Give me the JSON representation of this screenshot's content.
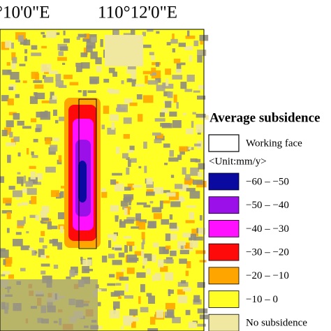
{
  "map_labels": {
    "lon_left": "°10'0\"E",
    "lon_right": "110°12'0\"E"
  },
  "legend": {
    "title": "Average subsidence",
    "working_face": "Working face",
    "unit": "<Unit:mm/y>",
    "items": [
      {
        "label": "−60 – −50",
        "color": "#0a0aa0"
      },
      {
        "label": "−50 – −40",
        "color": "#9b10e8"
      },
      {
        "label": "−40 – −30",
        "color": "#ff10ff"
      },
      {
        "label": "−30 – −20",
        "color": "#ff0a0a"
      },
      {
        "label": "−20 – −10",
        "color": "#ffa500"
      },
      {
        "label": "−10 – 0",
        "color": "#ffff26"
      },
      {
        "label": "No subsidence",
        "color": "#f0e8a0"
      }
    ]
  }
}
